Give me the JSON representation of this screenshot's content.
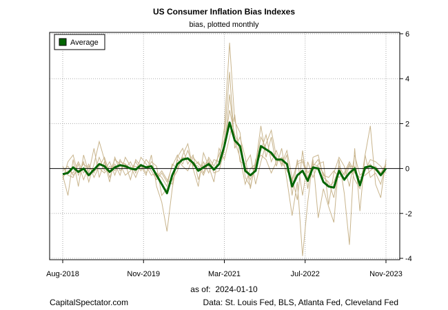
{
  "chart_data": {
    "type": "line",
    "title": "US Consumer Inflation Bias Indexes",
    "subtitle": "bias, plotted monthly",
    "xlabel": "",
    "ylabel": "",
    "ylim": [
      -4,
      6
    ],
    "yticks": [
      "6",
      "4",
      "2",
      "0",
      "-2",
      "-4"
    ],
    "xticks": [
      "Aug-2018",
      "Nov-2019",
      "Mar-2021",
      "Jul-2022",
      "Nov-2023"
    ],
    "grid": true,
    "legend": {
      "position": "top-left",
      "entries": [
        "Average"
      ]
    },
    "series": [
      {
        "name": "Average",
        "color": "#006400",
        "values": [
          -0.25,
          -0.2,
          0.05,
          -0.15,
          0.0,
          -0.3,
          -0.05,
          0.2,
          0.1,
          -0.15,
          0.05,
          0.15,
          0.1,
          0.0,
          -0.05,
          0.15,
          0.05,
          0.1,
          -0.3,
          -0.7,
          -1.1,
          -0.3,
          0.2,
          0.4,
          0.45,
          0.25,
          -0.1,
          0.05,
          0.2,
          -0.05,
          0.2,
          1.0,
          2.05,
          1.25,
          1.0,
          -0.1,
          -0.3,
          -0.1,
          1.0,
          0.85,
          0.7,
          0.4,
          0.4,
          0.2,
          -0.8,
          -0.3,
          -0.1,
          -0.55,
          0.05,
          0.0,
          -0.6,
          -0.8,
          -0.85,
          -0.1,
          -0.5,
          -0.2,
          0.0,
          -0.75,
          0.05,
          0.1,
          0.0,
          -0.3,
          0.0
        ]
      }
    ],
    "components": [
      {
        "name": "component-1",
        "color": "#C8B48C",
        "values": [
          -0.3,
          -1.2,
          0.4,
          -0.8,
          0.6,
          -0.2,
          0.9,
          -0.4,
          0.3,
          -0.6,
          0.5,
          -0.1,
          0.2,
          -0.5,
          0.4,
          0.1,
          -0.3,
          0.6,
          -0.8,
          -1.5,
          -2.8,
          -0.9,
          0.5,
          0.9,
          0.2,
          0.6,
          -0.5,
          0.3,
          -0.2,
          0.4,
          0.3,
          1.8,
          5.6,
          2.1,
          1.6,
          -0.4,
          -0.8,
          0.2,
          1.9,
          0.5,
          1.4,
          0.1,
          0.9,
          -0.5,
          -2.1,
          -0.6,
          -3.9,
          -1.5,
          0.4,
          -2.2,
          -0.9,
          -1.7,
          -2.4,
          0.4,
          -1.1,
          -3.4,
          0.9,
          -1.9,
          0.6,
          1.9,
          -0.7,
          -1.3,
          0.4
        ]
      },
      {
        "name": "component-2",
        "color": "#C8B48C",
        "values": [
          0.1,
          -0.3,
          -0.4,
          0.2,
          -0.5,
          0.1,
          -0.2,
          0.5,
          -0.1,
          0.3,
          -0.3,
          0.4,
          0.0,
          0.3,
          -0.2,
          0.5,
          0.2,
          -0.1,
          -0.5,
          -0.2,
          -0.6,
          0.1,
          0.6,
          0.2,
          0.8,
          0.1,
          0.3,
          -0.2,
          0.5,
          0.1,
          0.6,
          1.3,
          4.3,
          0.9,
          1.4,
          0.5,
          -0.9,
          0.4,
          0.8,
          1.5,
          0.3,
          0.8,
          0.1,
          0.6,
          -1.2,
          0.4,
          -1.2,
          0.3,
          -0.4,
          0.2,
          0.3,
          -1.6,
          -0.2,
          0.5,
          0.1,
          -0.8,
          0.6,
          -0.3,
          -0.1,
          0.4,
          0.3,
          0.1,
          -0.2
        ]
      },
      {
        "name": "component-3",
        "color": "#C8B48C",
        "values": [
          -0.5,
          0.3,
          0.6,
          -0.3,
          0.3,
          -0.6,
          0.2,
          1.2,
          0.4,
          -0.4,
          0.2,
          -0.3,
          0.5,
          0.1,
          -0.4,
          0.2,
          -0.2,
          0.3,
          0.1,
          -1.2,
          -0.9,
          -0.5,
          -0.1,
          0.6,
          1.1,
          0.0,
          -0.8,
          0.7,
          0.1,
          -0.6,
          0.9,
          0.4,
          1.4,
          2.4,
          0.3,
          0.2,
          0.6,
          -0.7,
          0.3,
          1.1,
          1.7,
          0.5,
          0.2,
          0.8,
          -0.4,
          -1.4,
          0.8,
          -0.9,
          0.5,
          0.6,
          -0.4,
          -0.6,
          -1.3,
          0.1,
          -0.3,
          0.2,
          -0.5,
          -0.9,
          0.6,
          -0.4,
          -0.2,
          -0.7,
          0.2
        ]
      },
      {
        "name": "component-4",
        "color": "#C8B48C",
        "values": [
          -0.4,
          -0.1,
          -0.2,
          0.3,
          -0.2,
          0.2,
          -0.4,
          0.1,
          0.5,
          -0.2,
          0.4,
          0.2,
          -0.3,
          -0.1,
          0.3,
          -0.1,
          0.4,
          0.1,
          -0.4,
          -0.1,
          -0.5,
          -0.7,
          0.4,
          0.1,
          -0.1,
          0.5,
          0.2,
          0.1,
          0.4,
          -0.2,
          -0.1,
          0.8,
          3.3,
          1.2,
          0.5,
          -0.7,
          0.0,
          0.2,
          0.6,
          0.4,
          -0.2,
          0.3,
          0.5,
          0.2,
          -0.6,
          0.3,
          0.4,
          -0.2,
          0.1,
          0.4,
          -0.3,
          -0.4,
          -0.1,
          -0.4,
          -0.2,
          0.3,
          -0.2,
          -0.4,
          -0.3,
          -0.1,
          0.1,
          -0.2,
          0.1
        ]
      },
      {
        "name": "component-5",
        "color": "#C8B48C",
        "values": [
          -0.1,
          0.1,
          -0.3,
          -0.1,
          0.2,
          0.0,
          -0.1,
          0.0,
          -0.2,
          0.1,
          -0.1,
          0.3,
          0.2,
          0.0,
          0.1,
          0.0,
          0.1,
          -0.3,
          -0.2,
          -0.4,
          -0.8,
          0.2,
          0.0,
          0.5,
          0.4,
          0.2,
          0.1,
          -0.3,
          0.3,
          0.0,
          0.2,
          0.9,
          2.6,
          1.5,
          1.0,
          0.1,
          -0.5,
          0.2,
          1.4,
          0.9,
          0.6,
          0.4,
          0.3,
          -0.1,
          -0.5,
          0.2,
          0.3,
          -0.4,
          0.2,
          0.1,
          -0.2,
          -0.8,
          -0.6,
          0.0,
          -0.5,
          0.1,
          0.1,
          -0.6,
          0.0,
          0.2,
          -0.1,
          -0.2,
          0.2
        ]
      }
    ]
  },
  "footer": {
    "asof_label": "as of:",
    "asof_date": "2024-01-10",
    "credit": "CapitalSpectator.com",
    "sources": "Data: St. Louis Fed, BLS, Atlanta Fed, Cleveland Fed"
  }
}
